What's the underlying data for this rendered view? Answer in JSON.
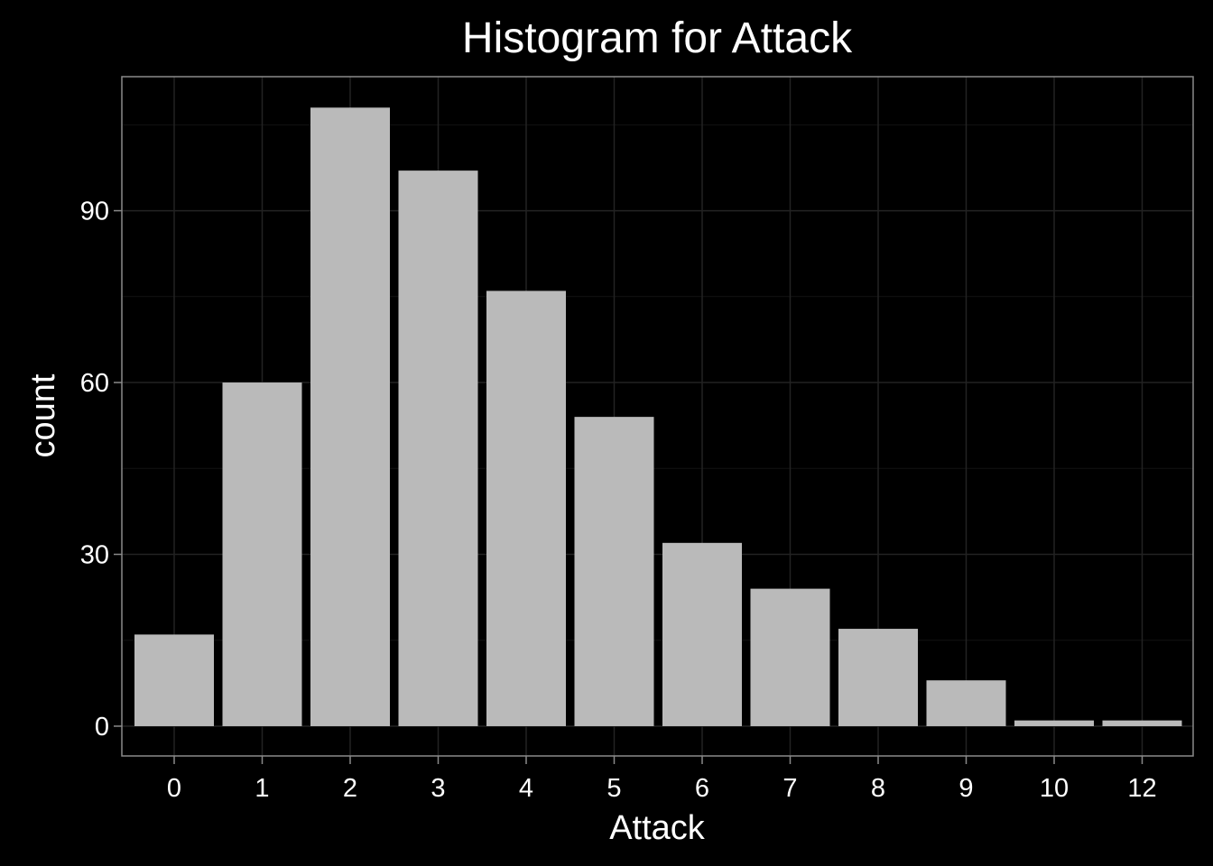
{
  "chart_data": {
    "type": "bar",
    "title": "Histogram for Attack",
    "xlabel": "Attack",
    "ylabel": "count",
    "categories": [
      "0",
      "1",
      "2",
      "3",
      "4",
      "5",
      "6",
      "7",
      "8",
      "9",
      "10",
      "12"
    ],
    "values": [
      16,
      60,
      108,
      97,
      76,
      54,
      32,
      24,
      17,
      8,
      1,
      1
    ],
    "yticks": [
      0,
      30,
      60,
      90
    ],
    "ylim": [
      -5.2,
      113.4
    ],
    "grid": true,
    "legend": "none",
    "colors": {
      "background": "#000000",
      "panel": "#000000",
      "bar": "#bababa",
      "grid_major": "#232323",
      "grid_minor": "#131313",
      "panel_border": "#8a8a8a",
      "text": "#ffffff"
    }
  }
}
